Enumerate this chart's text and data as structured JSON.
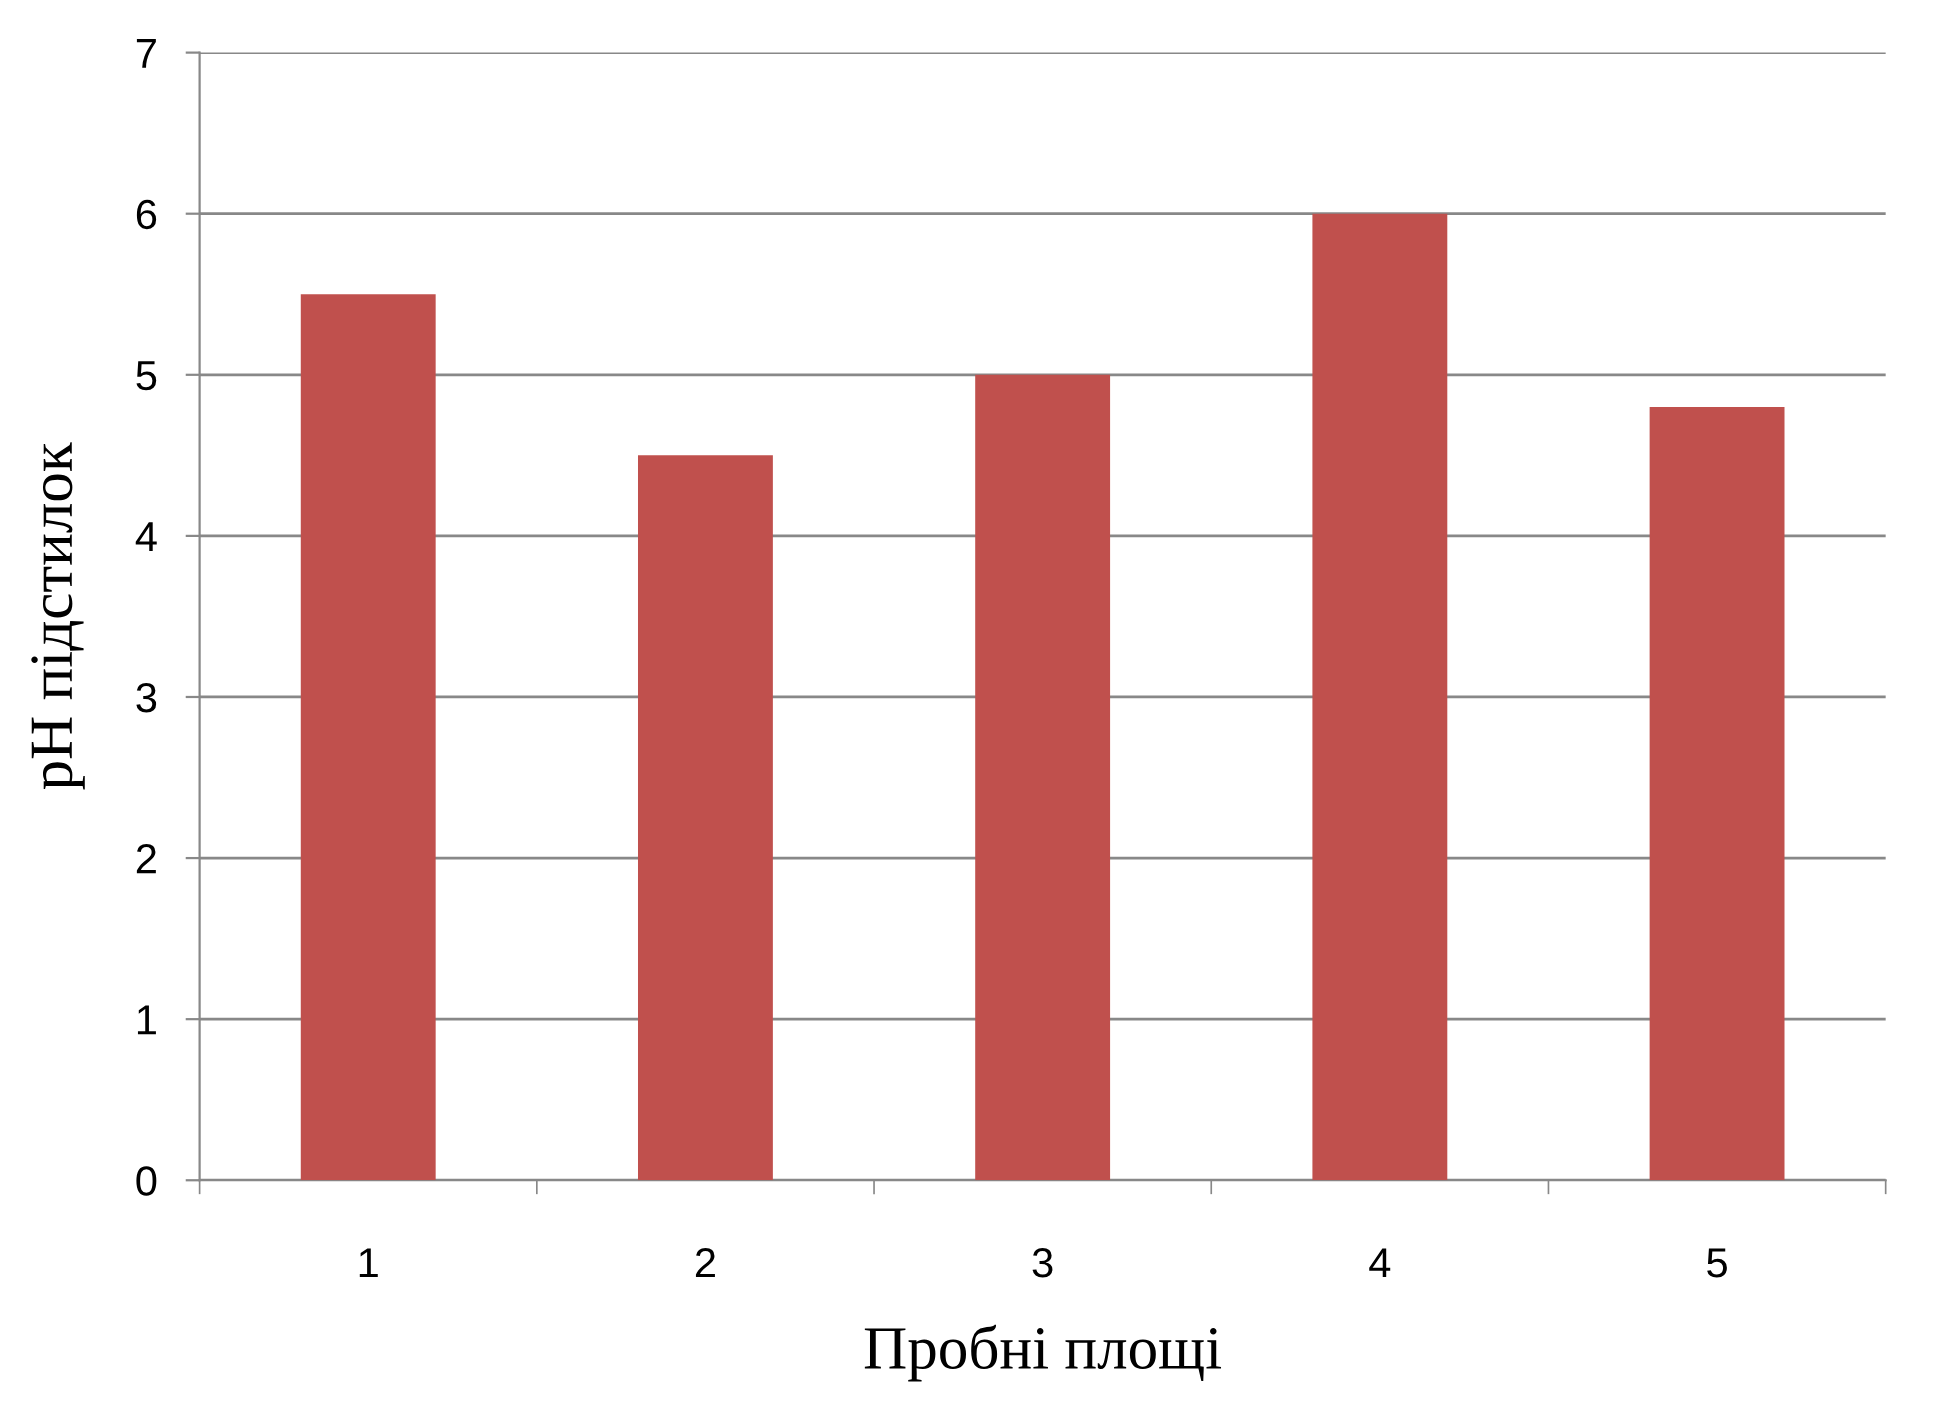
{
  "chart_data": {
    "type": "bar",
    "xlabel": "Пробні площі",
    "ylabel": "pH підстилок",
    "categories": [
      "1",
      "2",
      "3",
      "4",
      "5"
    ],
    "series": [
      {
        "color": "#c0504d",
        "values": [
          5.5,
          4.5,
          5.0,
          6.0,
          4.8
        ]
      }
    ],
    "ylim": [
      0,
      7
    ],
    "yticks": [
      0,
      1,
      2,
      3,
      4,
      5,
      6,
      7
    ],
    "grid": "y",
    "legend": false
  }
}
